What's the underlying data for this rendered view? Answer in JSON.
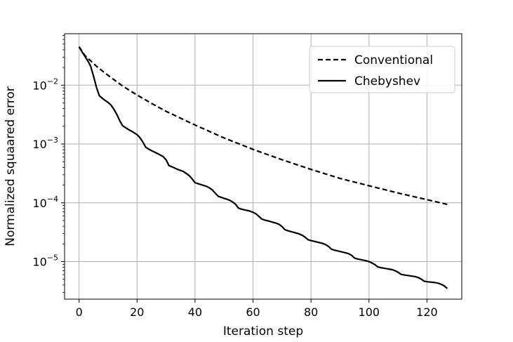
{
  "chart_data": {
    "type": "line",
    "title": "",
    "xlabel": "Iteration step",
    "ylabel": "Normalized squaared error",
    "xlim": [
      -5,
      132
    ],
    "ylim": [
      2.3e-06,
      0.075
    ],
    "yscale": "log",
    "grid": true,
    "legend": "top-right",
    "xticks": [
      0,
      20,
      40,
      60,
      80,
      100,
      120
    ],
    "xtick_labels": [
      "0",
      "20",
      "40",
      "60",
      "80",
      "100",
      "120"
    ],
    "yticks": [
      1e-05,
      0.0001,
      0.001,
      0.01
    ],
    "ytick_labels": [
      {
        "base": "10",
        "exp": "−5"
      },
      {
        "base": "10",
        "exp": "−4"
      },
      {
        "base": "10",
        "exp": "−3"
      },
      {
        "base": "10",
        "exp": "−2"
      }
    ],
    "series": [
      {
        "name": "Conventional",
        "style": "dashed",
        "color": "#000000",
        "x": [
          0,
          2,
          4,
          6,
          8,
          10,
          15,
          20,
          25,
          30,
          40,
          50,
          60,
          70,
          80,
          90,
          100,
          110,
          120,
          127
        ],
        "y": [
          0.045,
          0.032,
          0.026,
          0.021,
          0.0175,
          0.0147,
          0.0097,
          0.0068,
          0.0049,
          0.0036,
          0.0021,
          0.00127,
          0.00081,
          0.00054,
          0.00037,
          0.00026,
          0.000195,
          0.000147,
          0.000113,
          9.4e-05
        ]
      },
      {
        "name": "Chebyshev",
        "style": "solid",
        "color": "#000000",
        "x": [
          0,
          1,
          2,
          3,
          4,
          5,
          6,
          7,
          8,
          9,
          10,
          11,
          12,
          13,
          14,
          15,
          16,
          17,
          18,
          19,
          20,
          21,
          22,
          23,
          24,
          25,
          26,
          27,
          28,
          29,
          30,
          31,
          32,
          33,
          34,
          35,
          36,
          37,
          38,
          39,
          40,
          41,
          42,
          43,
          44,
          45,
          46,
          47,
          48,
          49,
          50,
          51,
          52,
          53,
          54,
          55,
          56,
          57,
          58,
          59,
          60,
          61,
          62,
          63,
          64,
          65,
          66,
          67,
          68,
          69,
          70,
          71,
          72,
          73,
          74,
          75,
          76,
          77,
          78,
          79,
          80,
          81,
          82,
          83,
          84,
          85,
          86,
          87,
          88,
          89,
          90,
          91,
          92,
          93,
          94,
          95,
          96,
          97,
          98,
          99,
          100,
          101,
          102,
          103,
          104,
          105,
          106,
          107,
          108,
          109,
          110,
          111,
          112,
          113,
          114,
          115,
          116,
          117,
          118,
          119,
          120,
          121,
          122,
          123,
          124,
          125,
          126,
          127
        ],
        "y": [
          0.045,
          0.037,
          0.031,
          0.026,
          0.021,
          0.0142,
          0.0092,
          0.0066,
          0.006,
          0.0055,
          0.0051,
          0.0046,
          0.0039,
          0.0032,
          0.0025,
          0.00205,
          0.0019,
          0.00177,
          0.00166,
          0.00155,
          0.00144,
          0.00128,
          0.00108,
          0.00088,
          0.00082,
          0.00077,
          0.00073,
          0.00069,
          0.00065,
          0.00061,
          0.00054,
          0.00043,
          0.00041,
          0.00039,
          0.00037,
          0.000355,
          0.00034,
          0.000315,
          0.00029,
          0.000255,
          0.00022,
          0.000212,
          0.000204,
          0.000197,
          0.00019,
          0.000179,
          0.000165,
          0.000145,
          0.000129,
          0.000124,
          0.000119,
          0.000115,
          0.00011,
          0.000103,
          9.4e-05,
          8.1e-05,
          7.8e-05,
          7.6e-05,
          7.4e-05,
          7.2e-05,
          6.9e-05,
          6.5e-05,
          5.9e-05,
          5.3e-05,
          5.1e-05,
          4.95e-05,
          4.8e-05,
          4.65e-05,
          4.5e-05,
          4.3e-05,
          3.95e-05,
          3.5e-05,
          3.35e-05,
          3.25e-05,
          3.15e-05,
          3.05e-05,
          2.95e-05,
          2.8e-05,
          2.6e-05,
          2.35e-05,
          2.28e-05,
          2.22e-05,
          2.16e-05,
          2.1e-05,
          2.04e-05,
          1.95e-05,
          1.82e-05,
          1.63e-05,
          1.57e-05,
          1.53e-05,
          1.49e-05,
          1.45e-05,
          1.41e-05,
          1.36e-05,
          1.28e-05,
          1.15e-05,
          1.11e-05,
          1.085e-05,
          1.06e-05,
          1.035e-05,
          1e-05,
          9.5e-06,
          8.9e-06,
          8.15e-06,
          7.9e-06,
          7.75e-06,
          7.6e-06,
          7.45e-06,
          7.3e-06,
          7e-06,
          6.6e-06,
          6.1e-06,
          5.95e-06,
          5.85e-06,
          5.75e-06,
          5.65e-06,
          5.55e-06,
          5.35e-06,
          5.05e-06,
          4.65e-06,
          4.55e-06,
          4.5e-06,
          4.45e-06,
          4.38e-06,
          4.28e-06,
          4.1e-06,
          3.85e-06,
          3.5e-06
        ]
      }
    ]
  }
}
